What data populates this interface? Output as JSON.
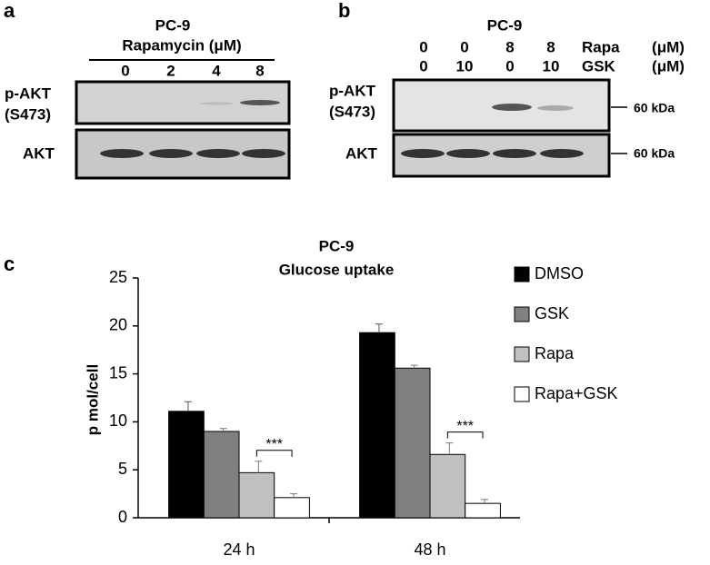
{
  "panel_a": {
    "label": "a",
    "title": "PC-9",
    "treatment": "Rapamycin (μM)",
    "doses": [
      "0",
      "2",
      "4",
      "8"
    ],
    "row_labels": [
      [
        "p-AKT",
        "(S473)"
      ],
      [
        "AKT"
      ]
    ]
  },
  "panel_b": {
    "label": "b",
    "title": "PC-9",
    "conditions": [
      {
        "name": "Rapa",
        "unit": "(μM)",
        "doses": [
          "0",
          "0",
          "8",
          "8"
        ]
      },
      {
        "name": "GSK",
        "unit": "(μM)",
        "doses": [
          "0",
          "10",
          "0",
          "10"
        ]
      }
    ],
    "row_labels": [
      [
        "p-AKT",
        "(S473)"
      ],
      [
        "AKT"
      ]
    ],
    "markers": [
      "60 kDa",
      "60 kDa"
    ]
  },
  "chart_data": {
    "type": "bar",
    "panel_label": "c",
    "title": "PC-9",
    "subtitle": "Glucose uptake",
    "y_label": "p mol/cell",
    "categories": [
      "24 h",
      "48 h"
    ],
    "series": [
      {
        "name": "DMSO",
        "color": "#000000",
        "values": [
          11.1,
          19.3
        ],
        "errors": [
          1.0,
          0.9
        ]
      },
      {
        "name": "GSK",
        "color": "#808080",
        "values": [
          9.0,
          15.6
        ],
        "errors": [
          0.3,
          0.3
        ]
      },
      {
        "name": "Rapa",
        "color": "#c0c0c0",
        "values": [
          4.7,
          6.6
        ],
        "errors": [
          1.2,
          1.2
        ]
      },
      {
        "name": "Rapa+GSK",
        "color": "#ffffff",
        "values": [
          2.1,
          1.5
        ],
        "errors": [
          0.4,
          0.4
        ]
      }
    ],
    "annotations": [
      "***",
      "***"
    ],
    "ylim": [
      0,
      25
    ],
    "yticks": [
      0,
      5,
      10,
      15,
      20,
      25
    ],
    "legend": "right"
  }
}
